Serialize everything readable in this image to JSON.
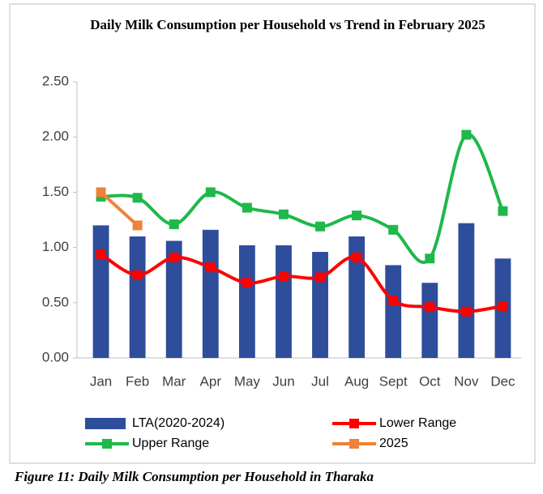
{
  "chart_data": {
    "type": "bar-line",
    "title": "Daily Milk Consumption per Household vs Trend in February 2025",
    "caption": "Figure 11: Daily Milk Consumption per Household in Tharaka",
    "categories": [
      "Jan",
      "Feb",
      "Mar",
      "Apr",
      "May",
      "Jun",
      "Jul",
      "Aug",
      "Sept",
      "Oct",
      "Nov",
      "Dec"
    ],
    "series": [
      {
        "name": "LTA(2020-2024)",
        "type": "bar",
        "color": "#2e4d9b",
        "values": [
          1.2,
          1.1,
          1.06,
          1.16,
          1.02,
          1.02,
          0.96,
          1.1,
          0.84,
          0.68,
          1.22,
          0.9
        ]
      },
      {
        "name": "Lower Range",
        "type": "line",
        "color": "#ff0000",
        "values": [
          0.94,
          0.75,
          0.91,
          0.82,
          0.68,
          0.74,
          0.73,
          0.91,
          0.52,
          0.46,
          0.42,
          0.47
        ]
      },
      {
        "name": "Upper Range",
        "type": "line",
        "color": "#1fb84a",
        "values": [
          1.46,
          1.45,
          1.21,
          1.5,
          1.36,
          1.3,
          1.19,
          1.29,
          1.16,
          0.9,
          2.02,
          1.33
        ]
      },
      {
        "name": "2025",
        "type": "line",
        "color": "#f0813a",
        "values": [
          1.5,
          1.2,
          null,
          null,
          null,
          null,
          null,
          null,
          null,
          null,
          null,
          null
        ]
      }
    ],
    "ylim": [
      0,
      2.5
    ],
    "yticks": [
      {
        "value": 0,
        "label": "0.00"
      },
      {
        "value": 0.5,
        "label": "0.50"
      },
      {
        "value": 1,
        "label": "1.00"
      },
      {
        "value": 1.5,
        "label": "1.50"
      },
      {
        "value": 2,
        "label": "2.00"
      },
      {
        "value": 2.5,
        "label": "2.50"
      }
    ],
    "grid": false,
    "smooth": true
  }
}
